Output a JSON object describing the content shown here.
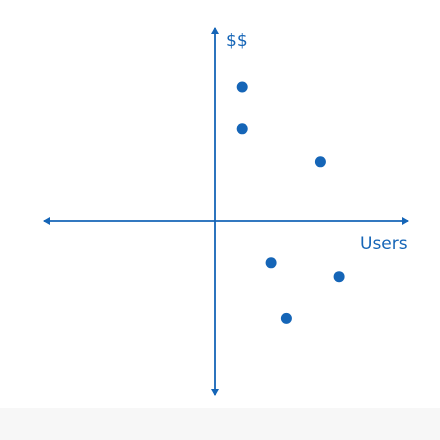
{
  "chart_data": {
    "type": "scatter",
    "title": "",
    "xlabel": "Users",
    "ylabel": "$$",
    "xlim": [
      -10,
      10
    ],
    "ylim": [
      -10,
      10
    ],
    "grid": false,
    "legend": "none",
    "axes": "crossed-with-arrows",
    "series": [
      {
        "points": [
          {
            "x": 1.6,
            "y": 7.7
          },
          {
            "x": 1.6,
            "y": 5.3
          },
          {
            "x": 6.2,
            "y": 3.4
          },
          {
            "x": 3.3,
            "y": -2.4
          },
          {
            "x": 7.3,
            "y": -3.2
          },
          {
            "x": 4.2,
            "y": -5.6
          }
        ]
      }
    ]
  },
  "colors": {
    "axis": "#1565b7",
    "points": "#1565b7",
    "background": "#ffffff",
    "bottom_band": "#f7f7f7"
  }
}
